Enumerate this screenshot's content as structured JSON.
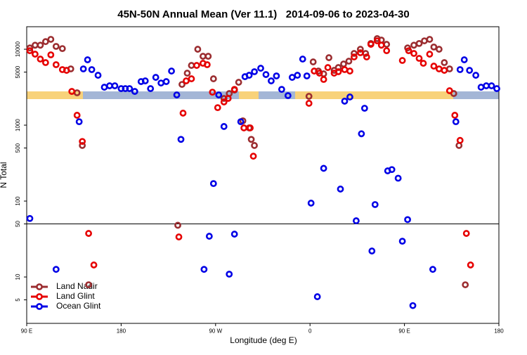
{
  "chart_data": {
    "type": "scatter",
    "title": "45N-50N Annual Mean (Ver 11.1)   2014-09-06 to 2023-04-30",
    "xlabel": "Longitude (deg E)",
    "ylabel": "N Total",
    "xlim": [
      90,
      540
    ],
    "xticks": [
      {
        "value": 90,
        "label": "90 E"
      },
      {
        "value": 180,
        "label": "180"
      },
      {
        "value": 270,
        "label": "90 W"
      },
      {
        "value": 360,
        "label": "0"
      },
      {
        "value": 450,
        "label": "90 E"
      },
      {
        "value": 540,
        "label": "180"
      }
    ],
    "ylim": [
      2.45,
      19800
    ],
    "log_y": true,
    "yticks": [
      5,
      10,
      50,
      100,
      500,
      1000,
      5000,
      10000
    ],
    "hline": 50,
    "legend": "lower left",
    "series": [
      {
        "name": "Land Nadir",
        "color": "#9b2d30",
        "x": [
          93,
          98,
          103,
          108,
          113,
          118,
          124,
          132,
          138,
          143,
          149,
          234,
          238,
          243,
          247,
          253,
          258,
          263,
          268,
          278,
          283,
          288,
          292,
          296,
          302,
          304,
          307,
          359,
          363,
          368,
          373,
          378,
          383,
          387,
          392,
          397,
          402,
          408,
          413,
          418,
          424,
          428,
          433,
          453,
          459,
          464,
          469,
          474,
          478,
          483,
          488,
          493,
          497,
          502,
          508
        ],
        "values": [
          10400,
          11300,
          11300,
          12600,
          13500,
          10900,
          10200,
          5510,
          2670,
          540,
          7.9,
          48,
          3440,
          4840,
          6120,
          10000,
          8080,
          8080,
          4080,
          2250,
          2610,
          2900,
          3670,
          1140,
          920,
          650,
          540,
          2400,
          6810,
          5160,
          4740,
          7740,
          5270,
          5740,
          6390,
          6960,
          8800,
          10000,
          8800,
          11900,
          13800,
          13200,
          11600,
          10400,
          11300,
          11900,
          12900,
          13500,
          10700,
          10000,
          6670,
          5510,
          2610,
          540,
          7.9
        ]
      },
      {
        "name": "Land Glint",
        "color": "#e60000",
        "x": [
          93,
          98,
          103,
          108,
          113,
          118,
          124,
          128,
          133,
          138,
          143,
          149,
          154,
          235,
          239,
          242,
          247,
          252,
          258,
          262,
          267,
          272,
          278,
          282,
          288,
          297,
          303,
          306,
          359,
          364,
          369,
          373,
          377,
          383,
          387,
          393,
          398,
          402,
          408,
          414,
          418,
          424,
          428,
          433,
          448,
          454,
          459,
          464,
          468,
          474,
          478,
          483,
          488,
          493,
          498,
          503,
          509,
          513
        ],
        "values": [
          9570,
          8610,
          7420,
          6670,
          8440,
          6260,
          5390,
          5270,
          2780,
          1350,
          610,
          37.5,
          14.4,
          33.7,
          1440,
          3830,
          4080,
          6120,
          6530,
          6260,
          2720,
          1700,
          2020,
          2250,
          2960,
          920,
          920,
          390,
          1940,
          5160,
          4840,
          4000,
          5740,
          4840,
          5060,
          5390,
          5160,
          7910,
          8990,
          7910,
          11600,
          12900,
          11300,
          9570,
          7110,
          9570,
          8800,
          7580,
          6530,
          8610,
          5990,
          5510,
          5270,
          2840,
          1350,
          630,
          37.5,
          14.4
        ]
      },
      {
        "name": "Ocean Glint",
        "color": "#0000e6",
        "x": [
          93,
          118,
          140,
          144,
          148,
          152,
          158,
          164,
          169,
          174,
          180,
          184,
          188,
          193,
          199,
          203,
          208,
          213,
          218,
          223,
          228,
          233,
          237,
          259,
          264,
          268,
          273,
          278,
          283,
          288,
          294,
          298,
          302,
          307,
          313,
          318,
          323,
          328,
          333,
          339,
          343,
          348,
          353,
          357,
          361,
          367,
          373,
          389,
          393,
          398,
          404,
          409,
          412,
          419,
          422,
          434,
          438,
          444,
          448,
          453,
          458,
          477,
          499,
          503,
          507,
          512,
          518,
          523,
          528,
          533,
          538
        ],
        "values": [
          59,
          12.6,
          1110,
          5510,
          7260,
          5390,
          4540,
          3160,
          3300,
          3300,
          3030,
          3030,
          3030,
          2780,
          3750,
          3830,
          3030,
          4260,
          3590,
          3750,
          5160,
          2500,
          650,
          12.6,
          34.4,
          170,
          2500,
          960,
          10.9,
          36.7,
          1110,
          4350,
          4540,
          5060,
          5620,
          4640,
          3830,
          4450,
          2960,
          2450,
          4260,
          4540,
          7420,
          4450,
          94,
          5.5,
          270,
          144,
          2070,
          2350,
          55,
          770,
          1670,
          22,
          90,
          250,
          260,
          200,
          29.6,
          57,
          4.2,
          12.6,
          1110,
          5390,
          7260,
          5270,
          4540,
          3160,
          3300,
          3300,
          3030
        ]
      }
    ]
  }
}
